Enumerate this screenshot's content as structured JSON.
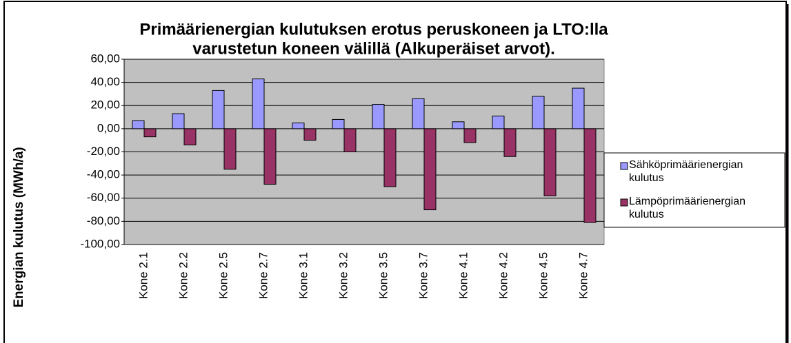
{
  "chart_data": {
    "type": "bar",
    "title": [
      "Primäärienergian kulutuksen erotus peruskoneen ja LTO:lla",
      "varustetun koneen välillä (Alkuperäiset arvot)."
    ],
    "y_label": "Energian kulutus (MWh/a)",
    "categories": [
      "Kone 2.1",
      "Kone 2.2",
      "Kone 2.5",
      "Kone 2.7",
      "Kone 3.1",
      "Kone 3.2",
      "Kone 3.5",
      "Kone 3.7",
      "Kone 4.1",
      "Kone 4.2",
      "Kone 4.5",
      "Kone 4.7"
    ],
    "series": [
      {
        "name": "Sähköprimäärienergian kulutus",
        "color": "#9999ff",
        "values": [
          7,
          13,
          33,
          43,
          5,
          8,
          21,
          26,
          6,
          11,
          28,
          35
        ]
      },
      {
        "name": "Lämpöprimäärienergian kulutus",
        "color": "#993366",
        "values": [
          -7,
          -14,
          -35,
          -48,
          -10,
          -20,
          -50,
          -70,
          -12,
          -24,
          -58,
          -81
        ]
      }
    ],
    "ylim": [
      -100,
      60
    ],
    "yticks": [
      {
        "value": -100,
        "label": "-100,00"
      },
      {
        "value": -80,
        "label": "-80,00"
      },
      {
        "value": -60,
        "label": "-60,00"
      },
      {
        "value": -40,
        "label": "-40,00"
      },
      {
        "value": -20,
        "label": "-20,00"
      },
      {
        "value": 0,
        "label": "0,00"
      },
      {
        "value": 20,
        "label": "20,00"
      },
      {
        "value": 40,
        "label": "40,00"
      },
      {
        "value": 60,
        "label": "60,00"
      }
    ],
    "grid": true,
    "legend": "right",
    "plot_background": "#c0c0c0"
  }
}
